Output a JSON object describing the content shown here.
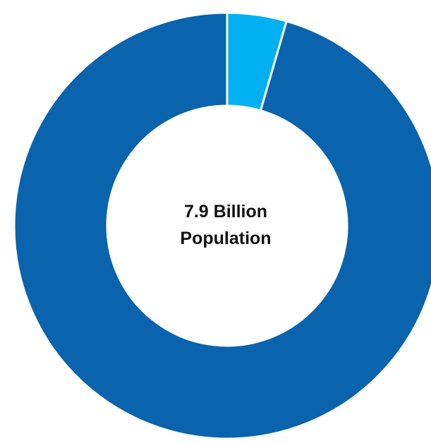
{
  "chart_data": {
    "type": "pie",
    "variant": "donut",
    "center_text": [
      "7.9 Billion",
      "Population"
    ],
    "slices": [
      {
        "value": 4.5,
        "color": "#00b0f0"
      },
      {
        "value": 95.5,
        "color": "#0a63ad"
      }
    ],
    "start": "top",
    "direction": "clockwise",
    "legend": "none"
  }
}
